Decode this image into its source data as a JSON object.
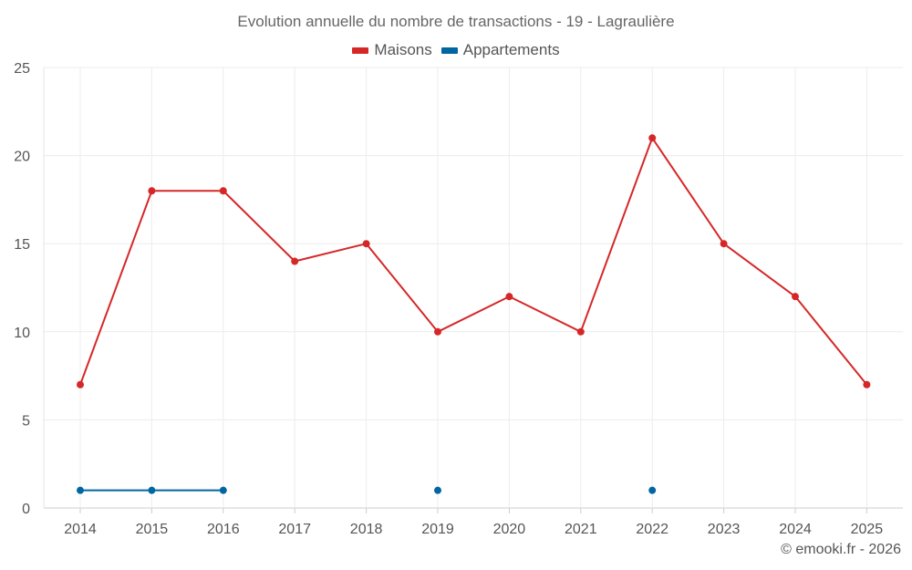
{
  "chart_data": {
    "type": "line",
    "title": "Evolution annuelle du nombre de transactions - 19 - Lagraulière",
    "categories": [
      "2014",
      "2015",
      "2016",
      "2017",
      "2018",
      "2019",
      "2020",
      "2021",
      "2022",
      "2023",
      "2024",
      "2025"
    ],
    "series": [
      {
        "name": "Maisons",
        "color": "#d62728",
        "values": [
          7,
          18,
          18,
          14,
          15,
          10,
          12,
          10,
          21,
          15,
          12,
          7
        ]
      },
      {
        "name": "Appartements",
        "color": "#0066a1",
        "values": [
          1,
          1,
          1,
          null,
          null,
          1,
          null,
          null,
          1,
          null,
          null,
          null
        ]
      }
    ],
    "ylim": [
      0,
      25
    ],
    "yticks": [
      0,
      5,
      10,
      15,
      20,
      25
    ],
    "xlabel": "",
    "ylabel": "",
    "grid": true,
    "legend_position": "top-center"
  },
  "credit": "© emooki.fr - 2026"
}
